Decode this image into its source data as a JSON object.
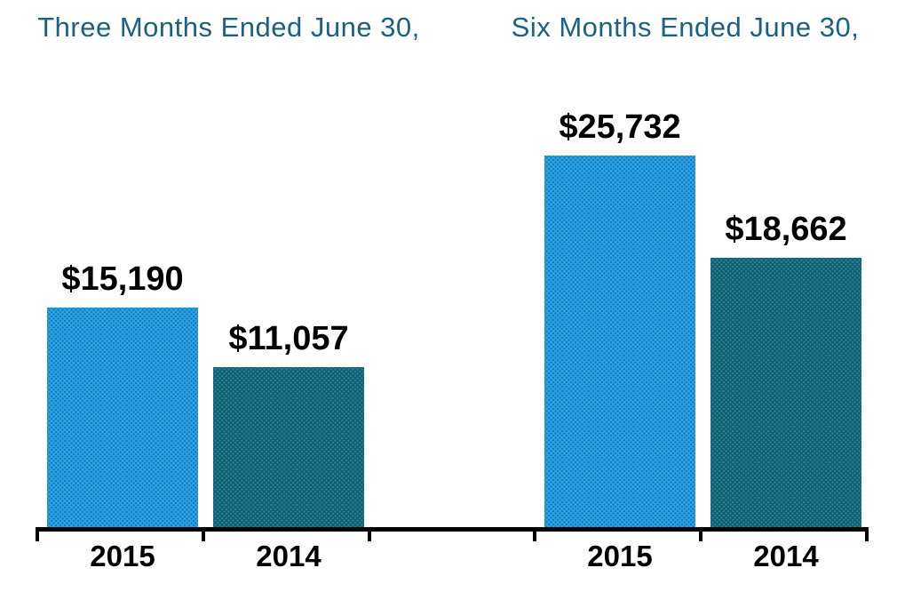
{
  "colors": {
    "background": "#ffffff",
    "title_text": "#1A6183",
    "bar_2015_fill": "#2AA7E4",
    "bar_2015_dot": "#1B74C0",
    "bar_2014_fill": "#0E5B87",
    "bar_2014_dot": "#2F8A70",
    "data_label_text": "#000000",
    "axis": "#000000"
  },
  "chart_data": {
    "type": "bar",
    "title": "",
    "xlabel": "",
    "ylabel": "",
    "ylim": [
      0,
      30000
    ],
    "grid": false,
    "legend": "none",
    "value_axis_visible": false,
    "groups": [
      {
        "title": "Three Months Ended June 30,",
        "categories": [
          "2015",
          "2014"
        ],
        "bars": [
          {
            "category": "2015",
            "series": "2015",
            "value": 15190,
            "label": "$15,190"
          },
          {
            "category": "2014",
            "series": "2014",
            "value": 11057,
            "label": "$11,057"
          }
        ]
      },
      {
        "title": "Six Months Ended June 30,",
        "categories": [
          "2015",
          "2014"
        ],
        "bars": [
          {
            "category": "2015",
            "series": "2015",
            "value": 25732,
            "label": "$25,732"
          },
          {
            "category": "2014",
            "series": "2014",
            "value": 18662,
            "label": "$18,662"
          }
        ]
      }
    ]
  }
}
